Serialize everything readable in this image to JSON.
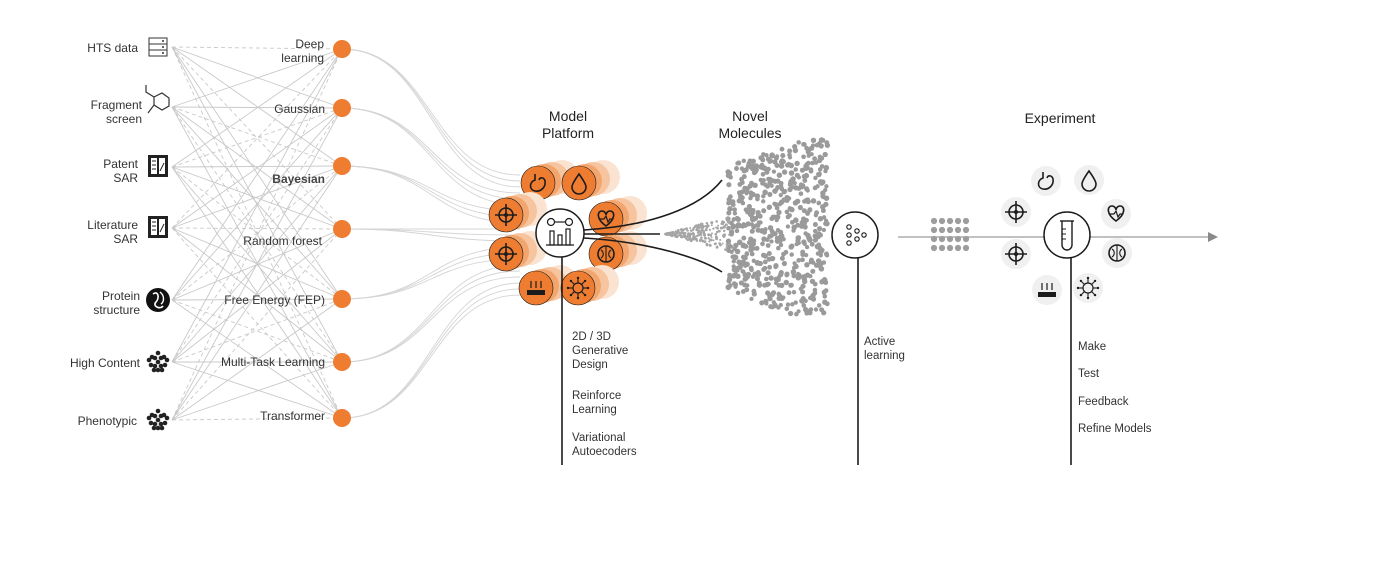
{
  "data_sources": [
    {
      "label": "HTS data",
      "icon": "server-icon"
    },
    {
      "label": "Fragment screen",
      "icon": "fragment-molecule-icon"
    },
    {
      "label": "Patent SAR",
      "icon": "document-icon"
    },
    {
      "label": "Literature SAR",
      "icon": "document-icon"
    },
    {
      "label": "Protein structure",
      "icon": "protein-icon"
    },
    {
      "label": "High Content",
      "icon": "cells-icon"
    },
    {
      "label": "Phenotypic",
      "icon": "cells-icon"
    }
  ],
  "models": [
    {
      "label": "Deep learning"
    },
    {
      "label": "Gaussian"
    },
    {
      "label": "Bayesian"
    },
    {
      "label": "Random forest"
    },
    {
      "label": "Free Energy (FEP)"
    },
    {
      "label": "Multi-Task Learning"
    },
    {
      "label": "Transformer"
    }
  ],
  "platform": {
    "title": "Model Platform",
    "methods": [
      "2D / 3D Generative Design",
      "Reinforce Learning",
      "Variational Autoecoders"
    ],
    "icons": [
      "stomach-icon",
      "drop-icon",
      "target-icon",
      "heart-icon",
      "target-icon",
      "brain-icon",
      "assay-plate-icon",
      "virus-icon"
    ]
  },
  "molecules": {
    "title": "Novel Molecules"
  },
  "active_learning": {
    "label": "Active learning",
    "icon": "network-icon"
  },
  "experiment": {
    "title": "Experiment",
    "steps": [
      "Make",
      "Test",
      "Feedback",
      "Refine Models"
    ],
    "icons": [
      "stomach-icon",
      "drop-icon",
      "target-icon",
      "heart-icon",
      "target-icon",
      "brain-icon",
      "assay-plate-icon",
      "virus-icon",
      "test-tube-icon"
    ]
  },
  "colors": {
    "accent": "#ee7d31",
    "line": "#c9c9c9",
    "dark": "#1f1f1f",
    "dots": "#9a9a9a"
  }
}
